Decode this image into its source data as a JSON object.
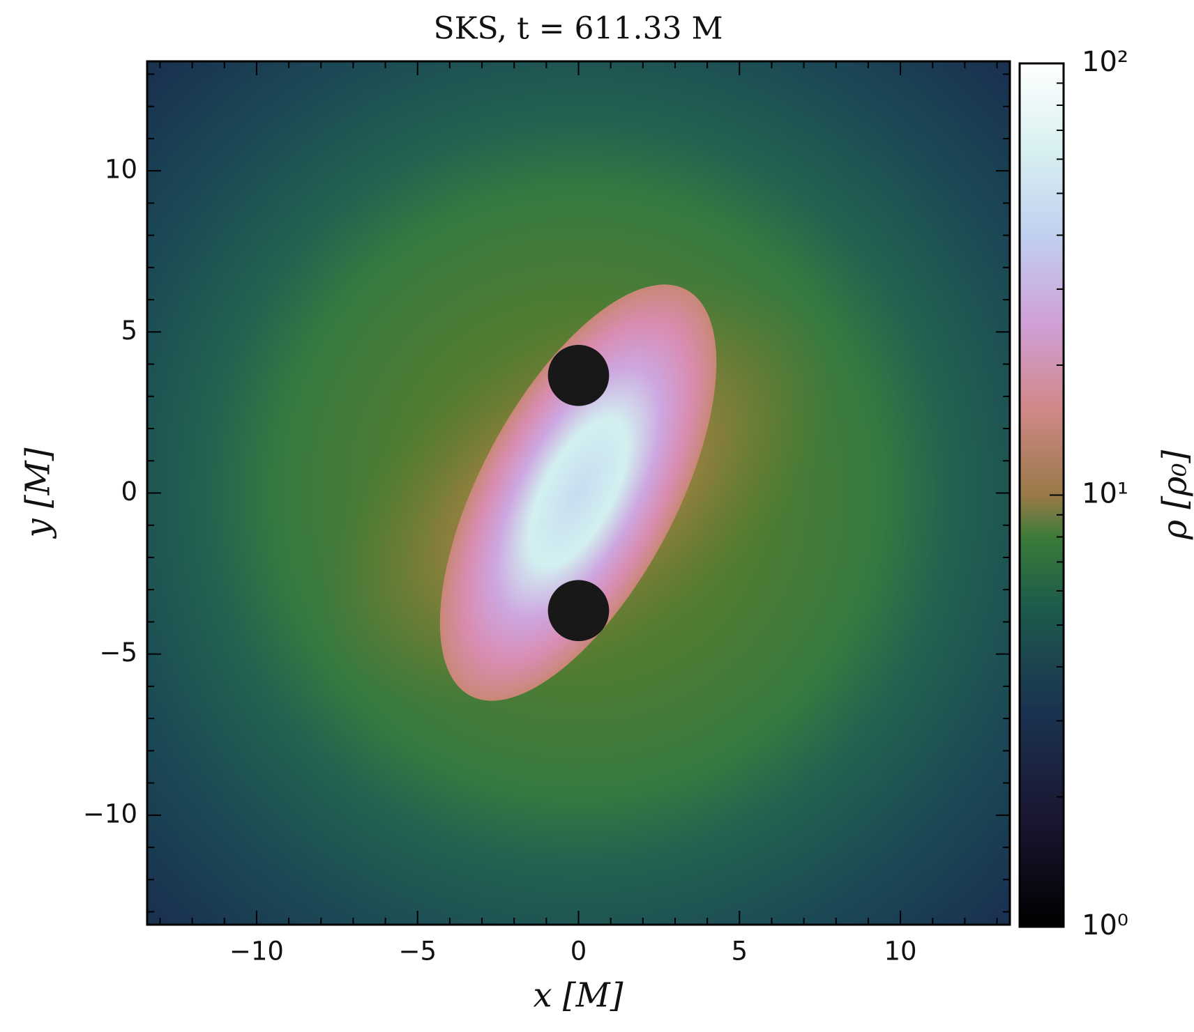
{
  "chart_data": {
    "type": "heatmap",
    "title": "SKS, t = 611.33 M",
    "x_label": "x [M]",
    "y_label": "y [M]",
    "xlim": [
      -13.4,
      13.4
    ],
    "ylim": [
      -13.4,
      13.4
    ],
    "xticks": [
      {
        "value": -10,
        "label": "−10"
      },
      {
        "value": -5,
        "label": "−5"
      },
      0,
      5,
      10
    ],
    "yticks": [
      {
        "value": -10,
        "label": "−10"
      },
      {
        "value": -5,
        "label": "−5"
      },
      0,
      5,
      10
    ],
    "xminorticks": [
      -13,
      -12,
      -11,
      -9,
      -8,
      -7,
      -6,
      -4,
      -3,
      -2,
      -1,
      1,
      2,
      3,
      4,
      6,
      7,
      8,
      9,
      11,
      12,
      13
    ],
    "yminorticks": [
      -13,
      -12,
      -11,
      -9,
      -8,
      -7,
      -6,
      -4,
      -3,
      -2,
      -1,
      1,
      2,
      3,
      4,
      6,
      7,
      8,
      9,
      11,
      12,
      13
    ],
    "horizons": {
      "x": [
        0,
        0
      ],
      "y": [
        3.65,
        -3.65
      ],
      "radius": [
        0.95,
        0.95
      ],
      "color": "#181818"
    },
    "colorbar": {
      "label": "ρ [ρ₀]",
      "log_scale": true,
      "lim": [
        1,
        100
      ],
      "ticks": [
        {
          "value": 1,
          "label": "10⁰"
        },
        {
          "value": 10,
          "label": "10¹"
        },
        {
          "value": 100,
          "label": "10²"
        }
      ],
      "minor_ticks": [
        2,
        3,
        4,
        5,
        6,
        7,
        8,
        9,
        20,
        30,
        40,
        50,
        60,
        70,
        80,
        90
      ]
    }
  }
}
